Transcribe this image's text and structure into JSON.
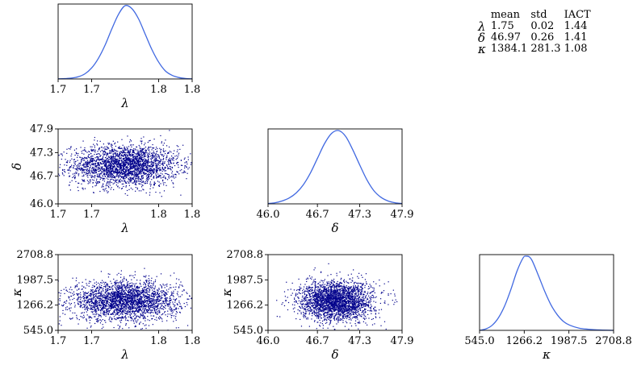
{
  "colors": {
    "density_line": "#4169e1",
    "scatter_point": "#00008b"
  },
  "stats_table": {
    "headers": [
      "",
      "mean",
      "std",
      "IACT"
    ],
    "rows": [
      {
        "param": "λ",
        "mean": "1.75",
        "std": "0.02",
        "iact": "1.44"
      },
      {
        "param": "δ",
        "mean": "46.97",
        "std": "0.26",
        "iact": "1.41"
      },
      {
        "param": "κ",
        "mean": "1384.1",
        "std": "281.3",
        "iact": "1.08"
      }
    ]
  },
  "chart_data": [
    {
      "type": "line",
      "panel": "density-lambda",
      "xlabel": "λ",
      "xlim": [
        1.7,
        1.8
      ],
      "xticks": [
        "1.7",
        "1.7",
        "1.8",
        "1.8"
      ],
      "xtick_values": [
        1.7,
        1.725,
        1.775,
        1.8
      ],
      "x": [
        1.7,
        1.705,
        1.71,
        1.715,
        1.72,
        1.725,
        1.73,
        1.735,
        1.74,
        1.745,
        1.75,
        1.755,
        1.76,
        1.765,
        1.77,
        1.775,
        1.78,
        1.785,
        1.79,
        1.795,
        1.8
      ],
      "y": [
        0.002,
        0.005,
        0.012,
        0.03,
        0.07,
        0.15,
        0.28,
        0.46,
        0.68,
        0.88,
        1.0,
        0.96,
        0.82,
        0.61,
        0.4,
        0.23,
        0.11,
        0.05,
        0.02,
        0.007,
        0.002
      ]
    },
    {
      "type": "scatter",
      "panel": "scatter-lambda-delta",
      "xlabel": "λ",
      "ylabel": "δ",
      "xlim": [
        1.7,
        1.8
      ],
      "ylim": [
        46.0,
        47.9
      ],
      "xticks": [
        "1.7",
        "1.7",
        "1.8",
        "1.8"
      ],
      "xtick_values": [
        1.7,
        1.725,
        1.775,
        1.8
      ],
      "yticks": [
        "46.0",
        "46.7",
        "47.3",
        "47.9"
      ],
      "ytick_values": [
        46.0,
        46.7,
        47.3,
        47.9
      ],
      "center": [
        1.75,
        46.97
      ],
      "spread": [
        0.02,
        0.26
      ]
    },
    {
      "type": "line",
      "panel": "density-delta",
      "xlabel": "δ",
      "xlim": [
        46.0,
        47.9
      ],
      "xticks": [
        "46.0",
        "46.7",
        "47.3",
        "47.9"
      ],
      "xtick_values": [
        46.0,
        46.7,
        47.3,
        47.9
      ],
      "x": [
        46.0,
        46.1,
        46.2,
        46.3,
        46.4,
        46.5,
        46.6,
        46.7,
        46.8,
        46.9,
        47.0,
        47.1,
        47.2,
        47.3,
        47.4,
        47.5,
        47.6,
        47.7,
        47.8,
        47.9
      ],
      "y": [
        0.005,
        0.015,
        0.04,
        0.08,
        0.15,
        0.26,
        0.42,
        0.62,
        0.82,
        0.96,
        1.0,
        0.92,
        0.74,
        0.53,
        0.33,
        0.18,
        0.09,
        0.04,
        0.015,
        0.005
      ]
    },
    {
      "type": "scatter",
      "panel": "scatter-lambda-kappa",
      "xlabel": "λ",
      "ylabel": "κ",
      "xlim": [
        1.7,
        1.8
      ],
      "ylim": [
        545.0,
        2708.8
      ],
      "xticks": [
        "1.7",
        "1.7",
        "1.8",
        "1.8"
      ],
      "xtick_values": [
        1.7,
        1.725,
        1.775,
        1.8
      ],
      "yticks": [
        "545.0",
        "1266.2",
        "1987.5",
        "2708.8"
      ],
      "ytick_values": [
        545.0,
        1266.2,
        1987.5,
        2708.8
      ],
      "center": [
        1.75,
        1384.1
      ],
      "spread": [
        0.02,
        281.3
      ]
    },
    {
      "type": "scatter",
      "panel": "scatter-delta-kappa",
      "xlabel": "δ",
      "ylabel": "κ",
      "xlim": [
        46.0,
        47.9
      ],
      "ylim": [
        545.0,
        2708.8
      ],
      "xticks": [
        "46.0",
        "46.7",
        "47.3",
        "47.9"
      ],
      "xtick_values": [
        46.0,
        46.7,
        47.3,
        47.9
      ],
      "yticks": [
        "545.0",
        "1266.2",
        "1987.5",
        "2708.8"
      ],
      "ytick_values": [
        545.0,
        1266.2,
        1987.5,
        2708.8
      ],
      "center": [
        46.97,
        1384.1
      ],
      "spread": [
        0.26,
        281.3
      ]
    },
    {
      "type": "line",
      "panel": "density-kappa",
      "xlabel": "κ",
      "xlim": [
        545.0,
        2708.8
      ],
      "xticks": [
        "545.0",
        "1266.2",
        "1987.5",
        "2708.8"
      ],
      "xtick_values": [
        545.0,
        1266.2,
        1987.5,
        2708.8
      ],
      "x": [
        545,
        650,
        750,
        850,
        950,
        1050,
        1150,
        1250,
        1300,
        1350,
        1400,
        1500,
        1600,
        1700,
        1800,
        1900,
        2000,
        2150,
        2300,
        2500,
        2708.8
      ],
      "y": [
        0.0,
        0.02,
        0.07,
        0.17,
        0.33,
        0.55,
        0.8,
        0.98,
        1.0,
        0.99,
        0.93,
        0.73,
        0.52,
        0.34,
        0.21,
        0.12,
        0.07,
        0.03,
        0.015,
        0.005,
        0.0
      ]
    }
  ]
}
